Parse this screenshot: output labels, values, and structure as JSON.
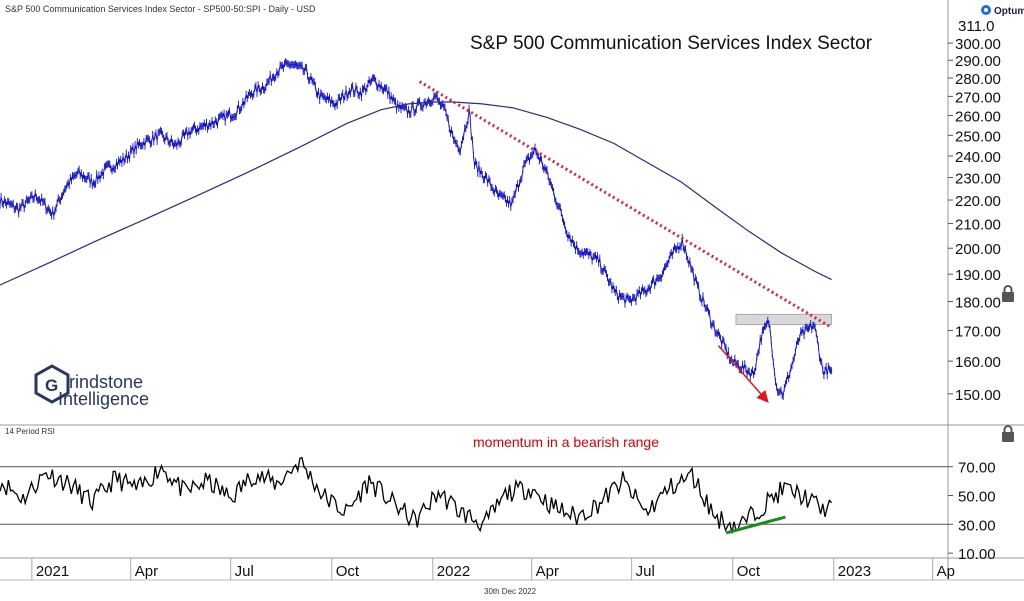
{
  "header": {
    "source_line": "S&P 500 Communication Services Index Sector - SP500-50:SPI - Daily - USD",
    "brand": "Optuma",
    "date_label": "30th Dec 2022"
  },
  "logo": {
    "line1": "rindstone",
    "line2": "Intelligence",
    "mark_letter": "G"
  },
  "colors": {
    "price": "#1010c8",
    "moving_average": "#2a2a8a",
    "trendline": "#e0203a",
    "arrow": "#e01818",
    "rsi": "#000000",
    "rsi_divergence": "#1a8a1a",
    "resistance_box": "#d8d8d8",
    "annotation": "#d40000"
  },
  "chart_data": [
    {
      "type": "line",
      "title": "S&P 500 Communication Services Index Sector",
      "x_range": [
        "2020-12-03",
        "2023-04-15"
      ],
      "y_ticks": [
        150,
        160,
        170,
        180,
        190,
        200,
        210,
        220,
        230,
        240,
        250,
        260,
        270,
        280,
        290,
        300
      ],
      "y_tick_labels": [
        "150.00",
        "160.00",
        "170.00",
        "180.00",
        "190.00",
        "200.00",
        "210.00",
        "220.00",
        "230.00",
        "240.00",
        "250.00",
        "260.00",
        "270.00",
        "280.00",
        "290.00",
        "300.00"
      ],
      "ylim": [
        143,
        314
      ],
      "y_scale": "log",
      "top_value_label": "311.0",
      "grid": false,
      "x_tick_labels": [
        "2021",
        "Apr",
        "Jul",
        "Oct",
        "2022",
        "Apr",
        "Jul",
        "Oct",
        "2023",
        "Ap"
      ],
      "x_tick_dates": [
        "2021-01-01",
        "2021-04-01",
        "2021-07-01",
        "2021-10-01",
        "2022-01-01",
        "2022-04-01",
        "2022-07-01",
        "2022-10-01",
        "2023-01-01",
        "2023-04-01"
      ],
      "series": [
        {
          "style": "price",
          "x": [
            "2020-12-03",
            "2020-12-20",
            "2021-01-05",
            "2021-01-20",
            "2021-02-01",
            "2021-02-12",
            "2021-02-26",
            "2021-03-10",
            "2021-03-25",
            "2021-04-10",
            "2021-04-28",
            "2021-05-12",
            "2021-05-25",
            "2021-06-08",
            "2021-06-22",
            "2021-07-06",
            "2021-07-20",
            "2021-08-02",
            "2021-08-12",
            "2021-08-25",
            "2021-09-08",
            "2021-09-20",
            "2021-10-05",
            "2021-10-18",
            "2021-10-28",
            "2021-11-08",
            "2021-11-20",
            "2021-11-30",
            "2021-12-10",
            "2021-12-22",
            "2022-01-03",
            "2022-01-12",
            "2022-01-20",
            "2022-01-26",
            "2022-02-03",
            "2022-02-08",
            "2022-02-18",
            "2022-03-01",
            "2022-03-14",
            "2022-03-25",
            "2022-04-04",
            "2022-04-14",
            "2022-04-25",
            "2022-05-04",
            "2022-05-12",
            "2022-05-20",
            "2022-06-01",
            "2022-06-16",
            "2022-06-28",
            "2022-07-14",
            "2022-07-28",
            "2022-08-08",
            "2022-08-16",
            "2022-08-30",
            "2022-09-13",
            "2022-09-30",
            "2022-10-10",
            "2022-10-20",
            "2022-10-27",
            "2022-11-03",
            "2022-11-10",
            "2022-11-16",
            "2022-11-25",
            "2022-12-01",
            "2022-12-08",
            "2022-12-14",
            "2022-12-22",
            "2022-12-30"
          ],
          "y": [
            220,
            216,
            222,
            214,
            226,
            232,
            228,
            234,
            238,
            246,
            250,
            245,
            252,
            255,
            258,
            262,
            272,
            276,
            284,
            288,
            283,
            270,
            266,
            274,
            272,
            279,
            273,
            264,
            262,
            266,
            270,
            262,
            248,
            244,
            262,
            236,
            230,
            222,
            218,
            235,
            243,
            233,
            218,
            206,
            200,
            198,
            195,
            183,
            180,
            184,
            190,
            198,
            203,
            185,
            172,
            160,
            158,
            156,
            168,
            173,
            152,
            150,
            160,
            168,
            170,
            172,
            157,
            157
          ]
        },
        {
          "style": "moving_average",
          "x": [
            "2020-12-03",
            "2021-01-15",
            "2021-03-01",
            "2021-04-15",
            "2021-06-01",
            "2021-07-15",
            "2021-09-01",
            "2021-10-15",
            "2021-11-15",
            "2021-12-10",
            "2022-01-01",
            "2022-01-20",
            "2022-02-15",
            "2022-03-15",
            "2022-04-15",
            "2022-05-15",
            "2022-06-15",
            "2022-07-15",
            "2022-08-15",
            "2022-09-15",
            "2022-10-15",
            "2022-11-15",
            "2022-12-15",
            "2022-12-30"
          ],
          "y": [
            186,
            194,
            203,
            212,
            222,
            232,
            244,
            256,
            263,
            266,
            267,
            267,
            266,
            264,
            259,
            253,
            246,
            237,
            228,
            217,
            207,
            198,
            191,
            188
          ]
        },
        {
          "style": "trendline",
          "x": [
            "2021-12-20",
            "2022-12-30"
          ],
          "y": [
            278,
            171
          ]
        }
      ],
      "annotations": [
        {
          "type": "box",
          "x": [
            "2022-10-04",
            "2022-12-30"
          ],
          "y": [
            172,
            175.5
          ],
          "meaning": "resistance"
        },
        {
          "type": "arrow",
          "x": [
            "2022-09-18",
            "2022-11-01"
          ],
          "y": [
            165,
            148
          ]
        }
      ]
    },
    {
      "type": "line",
      "title": "14 Period RSI",
      "annotation": "momentum in a bearish range",
      "ylim": [
        8,
        92
      ],
      "y_ticks": [
        10,
        30,
        50,
        70
      ],
      "y_tick_labels": [
        "10.00",
        "30.00",
        "50.00",
        "70.00"
      ],
      "reference_lines": [
        30,
        70
      ],
      "series": [
        {
          "style": "rsi",
          "x": [
            "2020-12-03",
            "2020-12-24",
            "2021-01-14",
            "2021-02-04",
            "2021-02-25",
            "2021-03-18",
            "2021-04-08",
            "2021-04-29",
            "2021-05-20",
            "2021-06-10",
            "2021-07-01",
            "2021-07-22",
            "2021-08-12",
            "2021-09-02",
            "2021-09-23",
            "2021-10-14",
            "2021-11-04",
            "2021-11-25",
            "2021-12-16",
            "2022-01-06",
            "2022-01-27",
            "2022-02-17",
            "2022-03-10",
            "2022-03-31",
            "2022-04-21",
            "2022-05-12",
            "2022-06-02",
            "2022-06-23",
            "2022-07-14",
            "2022-08-04",
            "2022-08-25",
            "2022-09-15",
            "2022-10-06",
            "2022-10-27",
            "2022-11-17",
            "2022-12-08",
            "2022-12-22",
            "2022-12-30"
          ],
          "y": [
            60,
            48,
            66,
            58,
            45,
            62,
            54,
            70,
            52,
            60,
            48,
            65,
            58,
            74,
            50,
            38,
            60,
            45,
            32,
            52,
            38,
            30,
            52,
            55,
            42,
            35,
            45,
            60,
            38,
            55,
            64,
            35,
            28,
            42,
            55,
            48,
            40,
            45
          ]
        },
        {
          "style": "rsi_divergence",
          "x": [
            "2022-09-25",
            "2022-11-18"
          ],
          "y": [
            24,
            35
          ]
        }
      ]
    }
  ]
}
